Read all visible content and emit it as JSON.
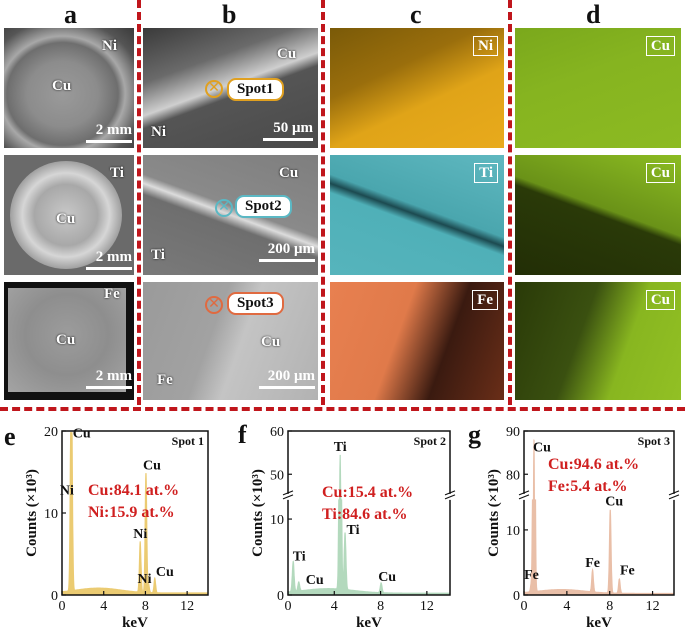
{
  "columns": [
    "a",
    "b",
    "c",
    "d"
  ],
  "rows": [
    {
      "a": {
        "label_top": "Ni",
        "label_center": "Cu",
        "scale": "2 mm"
      },
      "b": {
        "label_top": "Cu",
        "label_bottom": "Ni",
        "spot": "Spot1",
        "scale": "50 μm"
      },
      "c": {
        "badge": "Ni"
      },
      "d": {
        "badge": "Cu"
      }
    },
    {
      "a": {
        "label_top": "Ti",
        "label_center": "Cu",
        "scale": "2 mm"
      },
      "b": {
        "label_top": "Cu",
        "label_bottom": "Ti",
        "spot": "Spot2",
        "scale": "200 μm"
      },
      "c": {
        "badge": "Ti"
      },
      "d": {
        "badge": "Cu"
      }
    },
    {
      "a": {
        "label_top": "Fe",
        "label_center": "Cu",
        "scale": "2 mm"
      },
      "b": {
        "label_top": "Cu",
        "label_bottom": "Fe",
        "spot": "Spot3",
        "scale": "200 μm"
      },
      "c": {
        "badge": "Fe"
      },
      "d": {
        "badge": "Cu"
      }
    }
  ],
  "colors": {
    "divider": "#c0161c",
    "ni_map": "#d99a12",
    "ti_map": "#4fb0b8",
    "fe_map": "#e0734a",
    "cu_map": "#8fbf22",
    "composition_text": "#d02020"
  },
  "chart_data": [
    {
      "panel": "e",
      "type": "line",
      "title": "Spot 1",
      "xlabel": "keV",
      "ylabel": "Counts (×10³)",
      "xlim": [
        0,
        14
      ],
      "xticks": [
        0,
        4,
        8,
        12
      ],
      "ylim": [
        0,
        20
      ],
      "yticks": [
        0,
        10,
        20
      ],
      "composition": [
        "Cu:84.1 at.%",
        "Ni:15.9 at.%"
      ],
      "fill_color": "#e8c25a",
      "peaks": [
        {
          "x": 0.93,
          "y": 18.5,
          "label": "Cu"
        },
        {
          "x": 0.85,
          "y": 13.5,
          "label": "Ni"
        },
        {
          "x": 7.5,
          "y": 6.2,
          "label": "Ni"
        },
        {
          "x": 8.05,
          "y": 14.6,
          "label": "Cu"
        },
        {
          "x": 8.3,
          "y": 1.0,
          "label": "Ni"
        },
        {
          "x": 8.9,
          "y": 1.8,
          "label": "Cu"
        }
      ]
    },
    {
      "panel": "f",
      "type": "line",
      "title": "Spot 2",
      "xlabel": "keV",
      "ylabel": "Counts (×10³)",
      "xlim": [
        0,
        14
      ],
      "xticks": [
        0,
        4,
        8,
        12
      ],
      "ylim": [
        0,
        60
      ],
      "yticks": [
        0,
        10,
        50,
        60
      ],
      "axis_break": [
        12,
        45
      ],
      "composition": [
        "Cu:15.4 at.%",
        "Ti:84.6 at.%"
      ],
      "fill_color": "#a6d3b2",
      "peaks": [
        {
          "x": 0.45,
          "y": 4.0,
          "label": "Ti"
        },
        {
          "x": 0.93,
          "y": 1.2,
          "label": "Cu"
        },
        {
          "x": 4.51,
          "y": 54.0,
          "label": "Ti"
        },
        {
          "x": 4.93,
          "y": 7.5,
          "label": "Ti"
        },
        {
          "x": 8.05,
          "y": 1.3,
          "label": "Cu"
        }
      ]
    },
    {
      "panel": "g",
      "type": "line",
      "title": "Spot 3",
      "xlabel": "keV",
      "ylabel": "Counts (×10³)",
      "xlim": [
        0,
        14
      ],
      "xticks": [
        0,
        4,
        8,
        12
      ],
      "ylim": [
        0,
        90
      ],
      "yticks": [
        0,
        10,
        80,
        90
      ],
      "axis_break": [
        14,
        75
      ],
      "composition": [
        "Cu:94.6 at.%",
        "Fe:5.4 at.%"
      ],
      "fill_color": "#e6b49a",
      "peaks": [
        {
          "x": 0.93,
          "y": 88.0,
          "label": "Cu"
        },
        {
          "x": 0.7,
          "y": 1.5,
          "label": "Fe"
        },
        {
          "x": 6.4,
          "y": 3.4,
          "label": "Fe"
        },
        {
          "x": 8.05,
          "y": 12.8,
          "label": "Cu"
        },
        {
          "x": 8.9,
          "y": 2.2,
          "label": "Fe"
        }
      ]
    }
  ]
}
